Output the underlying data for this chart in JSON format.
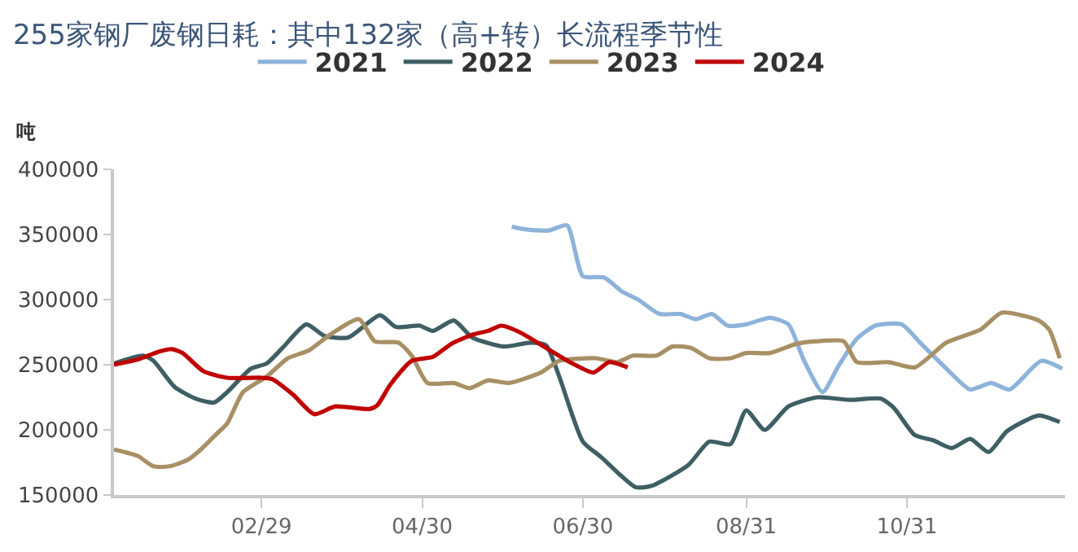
{
  "chart_data": {
    "type": "line",
    "title": "255家钢厂废钢日耗：其中132家（高+转）长流程季节性",
    "ylabel": "吨",
    "xlim": [
      "--01-04",
      "--12-30"
    ],
    "xticks": [
      {
        "value": "--02-29",
        "label": "02/29"
      },
      {
        "value": "--04-30",
        "label": "04/30"
      },
      {
        "value": "--06-30",
        "label": "06/30"
      },
      {
        "value": "--08-31",
        "label": "08/31"
      },
      {
        "value": "--10-31",
        "label": "10/31"
      }
    ],
    "ylim": [
      150000,
      400000
    ],
    "yticks": [
      150000,
      200000,
      250000,
      300000,
      350000,
      400000
    ],
    "grid": false,
    "legend": "top",
    "marker": "none",
    "line_style": "solid",
    "series": [
      {
        "name": "2021",
        "color": "#8db3da",
        "x": [
          "--06-03",
          "--06-08",
          "--06-17",
          "--06-24",
          "--06-30",
          "--07-08",
          "--07-15",
          "--07-21",
          "--07-29",
          "--08-06",
          "--08-12",
          "--08-18",
          "--08-24",
          "--08-31",
          "--09-09",
          "--09-16",
          "--09-22",
          "--09-29",
          "--10-05",
          "--10-12",
          "--10-19",
          "--10-29",
          "--11-05",
          "--11-15",
          "--11-24",
          "--12-02",
          "--12-09",
          "--12-21",
          "--12-29"
        ],
        "values": [
          356000,
          354000,
          353000,
          357000,
          318000,
          317000,
          306000,
          300000,
          289000,
          289000,
          285000,
          289000,
          280000,
          281000,
          286000,
          281000,
          253000,
          229000,
          249000,
          270000,
          280000,
          281000,
          267000,
          247000,
          231000,
          236000,
          231000,
          253000,
          247000
        ]
      },
      {
        "name": "2022",
        "color": "#3e5f63",
        "x": [
          "--01-04",
          "--01-15",
          "--01-19",
          "--01-27",
          "--02-04",
          "--02-11",
          "--02-16",
          "--02-25",
          "--03-02",
          "--03-08",
          "--03-17",
          "--03-24",
          "--04-02",
          "--04-14",
          "--04-20",
          "--04-29",
          "--05-04",
          "--05-12",
          "--05-19",
          "--05-31",
          "--06-10",
          "--06-16",
          "--06-21",
          "--06-30",
          "--07-07",
          "--07-20",
          "--07-26",
          "--08-09",
          "--08-17",
          "--08-25",
          "--08-31",
          "--09-07",
          "--09-16",
          "--09-27",
          "--10-09",
          "--10-21",
          "--10-26",
          "--11-03",
          "--11-10",
          "--11-17",
          "--11-24",
          "--12-01",
          "--12-08",
          "--12-20",
          "--12-28"
        ],
        "values": [
          251000,
          257000,
          253000,
          233000,
          224000,
          221000,
          229000,
          247000,
          251000,
          263000,
          281000,
          272000,
          271000,
          288000,
          279000,
          280000,
          276000,
          284000,
          271000,
          264000,
          267000,
          265000,
          241000,
          191000,
          179000,
          156000,
          157000,
          173000,
          191000,
          189000,
          215000,
          200000,
          218000,
          225000,
          223000,
          224000,
          217000,
          196000,
          192000,
          186000,
          193000,
          183000,
          199000,
          211000,
          206000
        ]
      },
      {
        "name": "2023",
        "color": "#a89065",
        "x": [
          "--01-04",
          "--01-13",
          "--01-19",
          "--01-25",
          "--02-01",
          "--02-06",
          "--02-12",
          "--02-16",
          "--02-22",
          "--03-02",
          "--03-10",
          "--03-18",
          "--03-26",
          "--04-06",
          "--04-12",
          "--04-21",
          "--04-26",
          "--05-02",
          "--05-12",
          "--05-18",
          "--05-25",
          "--06-02",
          "--06-14",
          "--06-21",
          "--07-05",
          "--07-13",
          "--07-19",
          "--07-28",
          "--08-03",
          "--08-10",
          "--08-17",
          "--08-25",
          "--08-31",
          "--09-09",
          "--09-19",
          "--09-27",
          "--10-07",
          "--10-12",
          "--10-24",
          "--11-03",
          "--11-15",
          "--11-28",
          "--12-06",
          "--12-20",
          "--12-24",
          "--12-28"
        ],
        "values": [
          185000,
          180000,
          172000,
          172000,
          177000,
          185000,
          197000,
          205000,
          229000,
          241000,
          255000,
          261000,
          273000,
          285000,
          268000,
          267000,
          257000,
          236000,
          236000,
          232000,
          238000,
          236000,
          244000,
          253000,
          255000,
          252000,
          257000,
          257000,
          264000,
          263000,
          255000,
          255000,
          259000,
          259000,
          266000,
          268000,
          268000,
          252000,
          252000,
          248000,
          267000,
          277000,
          290000,
          284000,
          277000,
          255000
        ]
      },
      {
        "name": "2024",
        "color": "#c00000",
        "x": [
          "--01-04",
          "--01-13",
          "--01-21",
          "--01-26",
          "--01-30",
          "--02-07",
          "--02-16",
          "--02-29",
          "--03-04",
          "--03-12",
          "--03-20",
          "--03-28",
          "--04-10",
          "--04-13",
          "--04-18",
          "--04-26",
          "--05-04",
          "--05-11",
          "--05-19",
          "--05-25",
          "--05-30",
          "--06-06",
          "--06-16",
          "--06-26",
          "--07-04",
          "--07-10",
          "--07-17"
        ],
        "values": [
          250000,
          254000,
          260000,
          262000,
          259000,
          245000,
          240000,
          240000,
          239000,
          227000,
          212000,
          218000,
          216000,
          219000,
          235000,
          253000,
          256000,
          266000,
          273000,
          276000,
          280000,
          275000,
          263000,
          251000,
          244000,
          252000,
          248000
        ]
      }
    ]
  }
}
